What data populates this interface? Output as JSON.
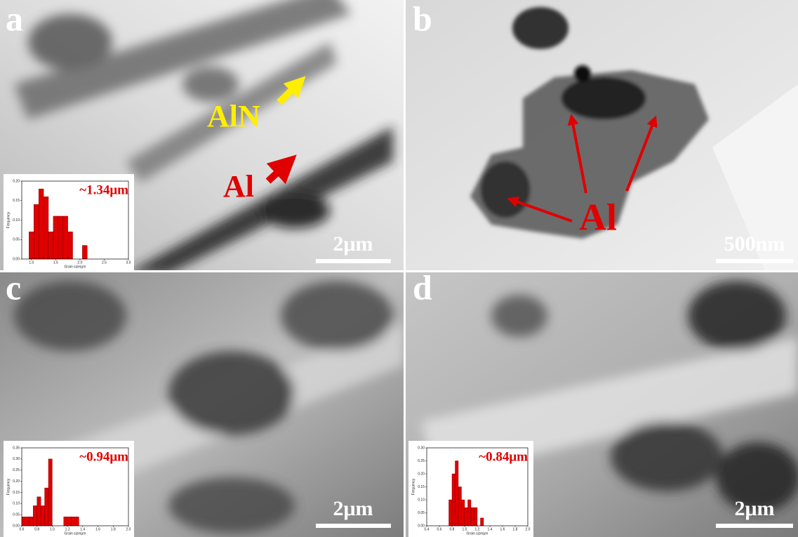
{
  "panels": [
    {
      "label": "a",
      "scale_bar": "2μm",
      "annotations": [
        "AlN",
        "Al"
      ],
      "inset": {
        "type": "histogram",
        "annotation": "~1.34μm",
        "xlabel": "Grain size/μm",
        "ylabel": "Frequency",
        "color": "#e00000",
        "bins": [
          0.95,
          1.05,
          1.15,
          1.25,
          1.35,
          1.45,
          1.55,
          1.65,
          1.75,
          1.85,
          1.95,
          2.05,
          2.15
        ],
        "values": [
          0.07,
          0.14,
          0.18,
          0.16,
          0.07,
          0.11,
          0.11,
          0.11,
          0.07,
          0,
          0,
          0.035
        ],
        "xlim": [
          0.8,
          3.0
        ],
        "xticks": [
          {
            "value": 1,
            "label": "1.0"
          },
          1.5,
          {
            "value": 2,
            "label": "2.0"
          },
          2.5,
          {
            "value": 3,
            "label": "3.0"
          }
        ],
        "ylim": [
          0,
          0.2
        ],
        "yticks": [
          {
            "value": 0,
            "label": "0.00"
          },
          0.05,
          {
            "value": 0.1,
            "label": "0.10"
          },
          0.15,
          {
            "value": 0.2,
            "label": "0.20"
          }
        ]
      }
    },
    {
      "label": "b",
      "scale_bar": "500nm",
      "annotations": [
        "Al"
      ]
    },
    {
      "label": "c",
      "scale_bar": "2μm",
      "inset": {
        "type": "histogram",
        "annotation": "~0.94μm",
        "xlabel": "Grain size/μm",
        "ylabel": "Frequency",
        "color": "#e00000",
        "bins": [
          0.6,
          0.7,
          0.75,
          0.8,
          0.85,
          0.9,
          0.95,
          1.0,
          1.15,
          1.25,
          1.35
        ],
        "values": [
          0.04,
          0.04,
          0.09,
          0.13,
          0.09,
          0.17,
          0.3,
          0,
          0.04,
          0.04
        ],
        "xlim": [
          0.6,
          2.0
        ],
        "xticks": [
          0.6,
          0.8,
          {
            "value": 1,
            "label": "1.0"
          },
          1.2,
          1.4,
          1.6,
          1.8,
          {
            "value": 2,
            "label": "2.0"
          }
        ],
        "ylim": [
          0,
          0.35
        ],
        "yticks": [
          {
            "value": 0,
            "label": "0.00"
          },
          0.05,
          {
            "value": 0.1,
            "label": "0.10"
          },
          0.15,
          {
            "value": 0.2,
            "label": "0.20"
          },
          0.25,
          {
            "value": 0.3,
            "label": "0.30"
          },
          0.35
        ]
      }
    },
    {
      "label": "d",
      "scale_bar": "2μm",
      "inset": {
        "type": "histogram",
        "annotation": "~0.84μm",
        "xlabel": "Grain size/μm",
        "ylabel": "Frequency",
        "color": "#e00000",
        "bins": [
          0.75,
          0.8,
          0.85,
          0.9,
          0.95,
          1.0,
          1.05,
          1.1,
          1.15,
          1.2,
          1.25,
          1.3
        ],
        "values": [
          0.1,
          0.2,
          0.25,
          0.15,
          0.1,
          0.07,
          0.1,
          0.07,
          0.07,
          0,
          0.03
        ],
        "xlim": [
          0.4,
          2.0
        ],
        "xticks": [
          0.4,
          0.6,
          0.8,
          {
            "value": 1,
            "label": "1.0"
          },
          1.2,
          1.4,
          1.6,
          1.8,
          {
            "value": 2,
            "label": "2.0"
          }
        ],
        "ylim": [
          0,
          0.3
        ],
        "yticks": [
          {
            "value": 0,
            "label": "0.00"
          },
          0.05,
          {
            "value": 0.1,
            "label": "0.10"
          },
          0.15,
          {
            "value": 0.2,
            "label": "0.20"
          },
          0.25,
          {
            "value": 0.3,
            "label": "0.30"
          }
        ]
      }
    }
  ]
}
